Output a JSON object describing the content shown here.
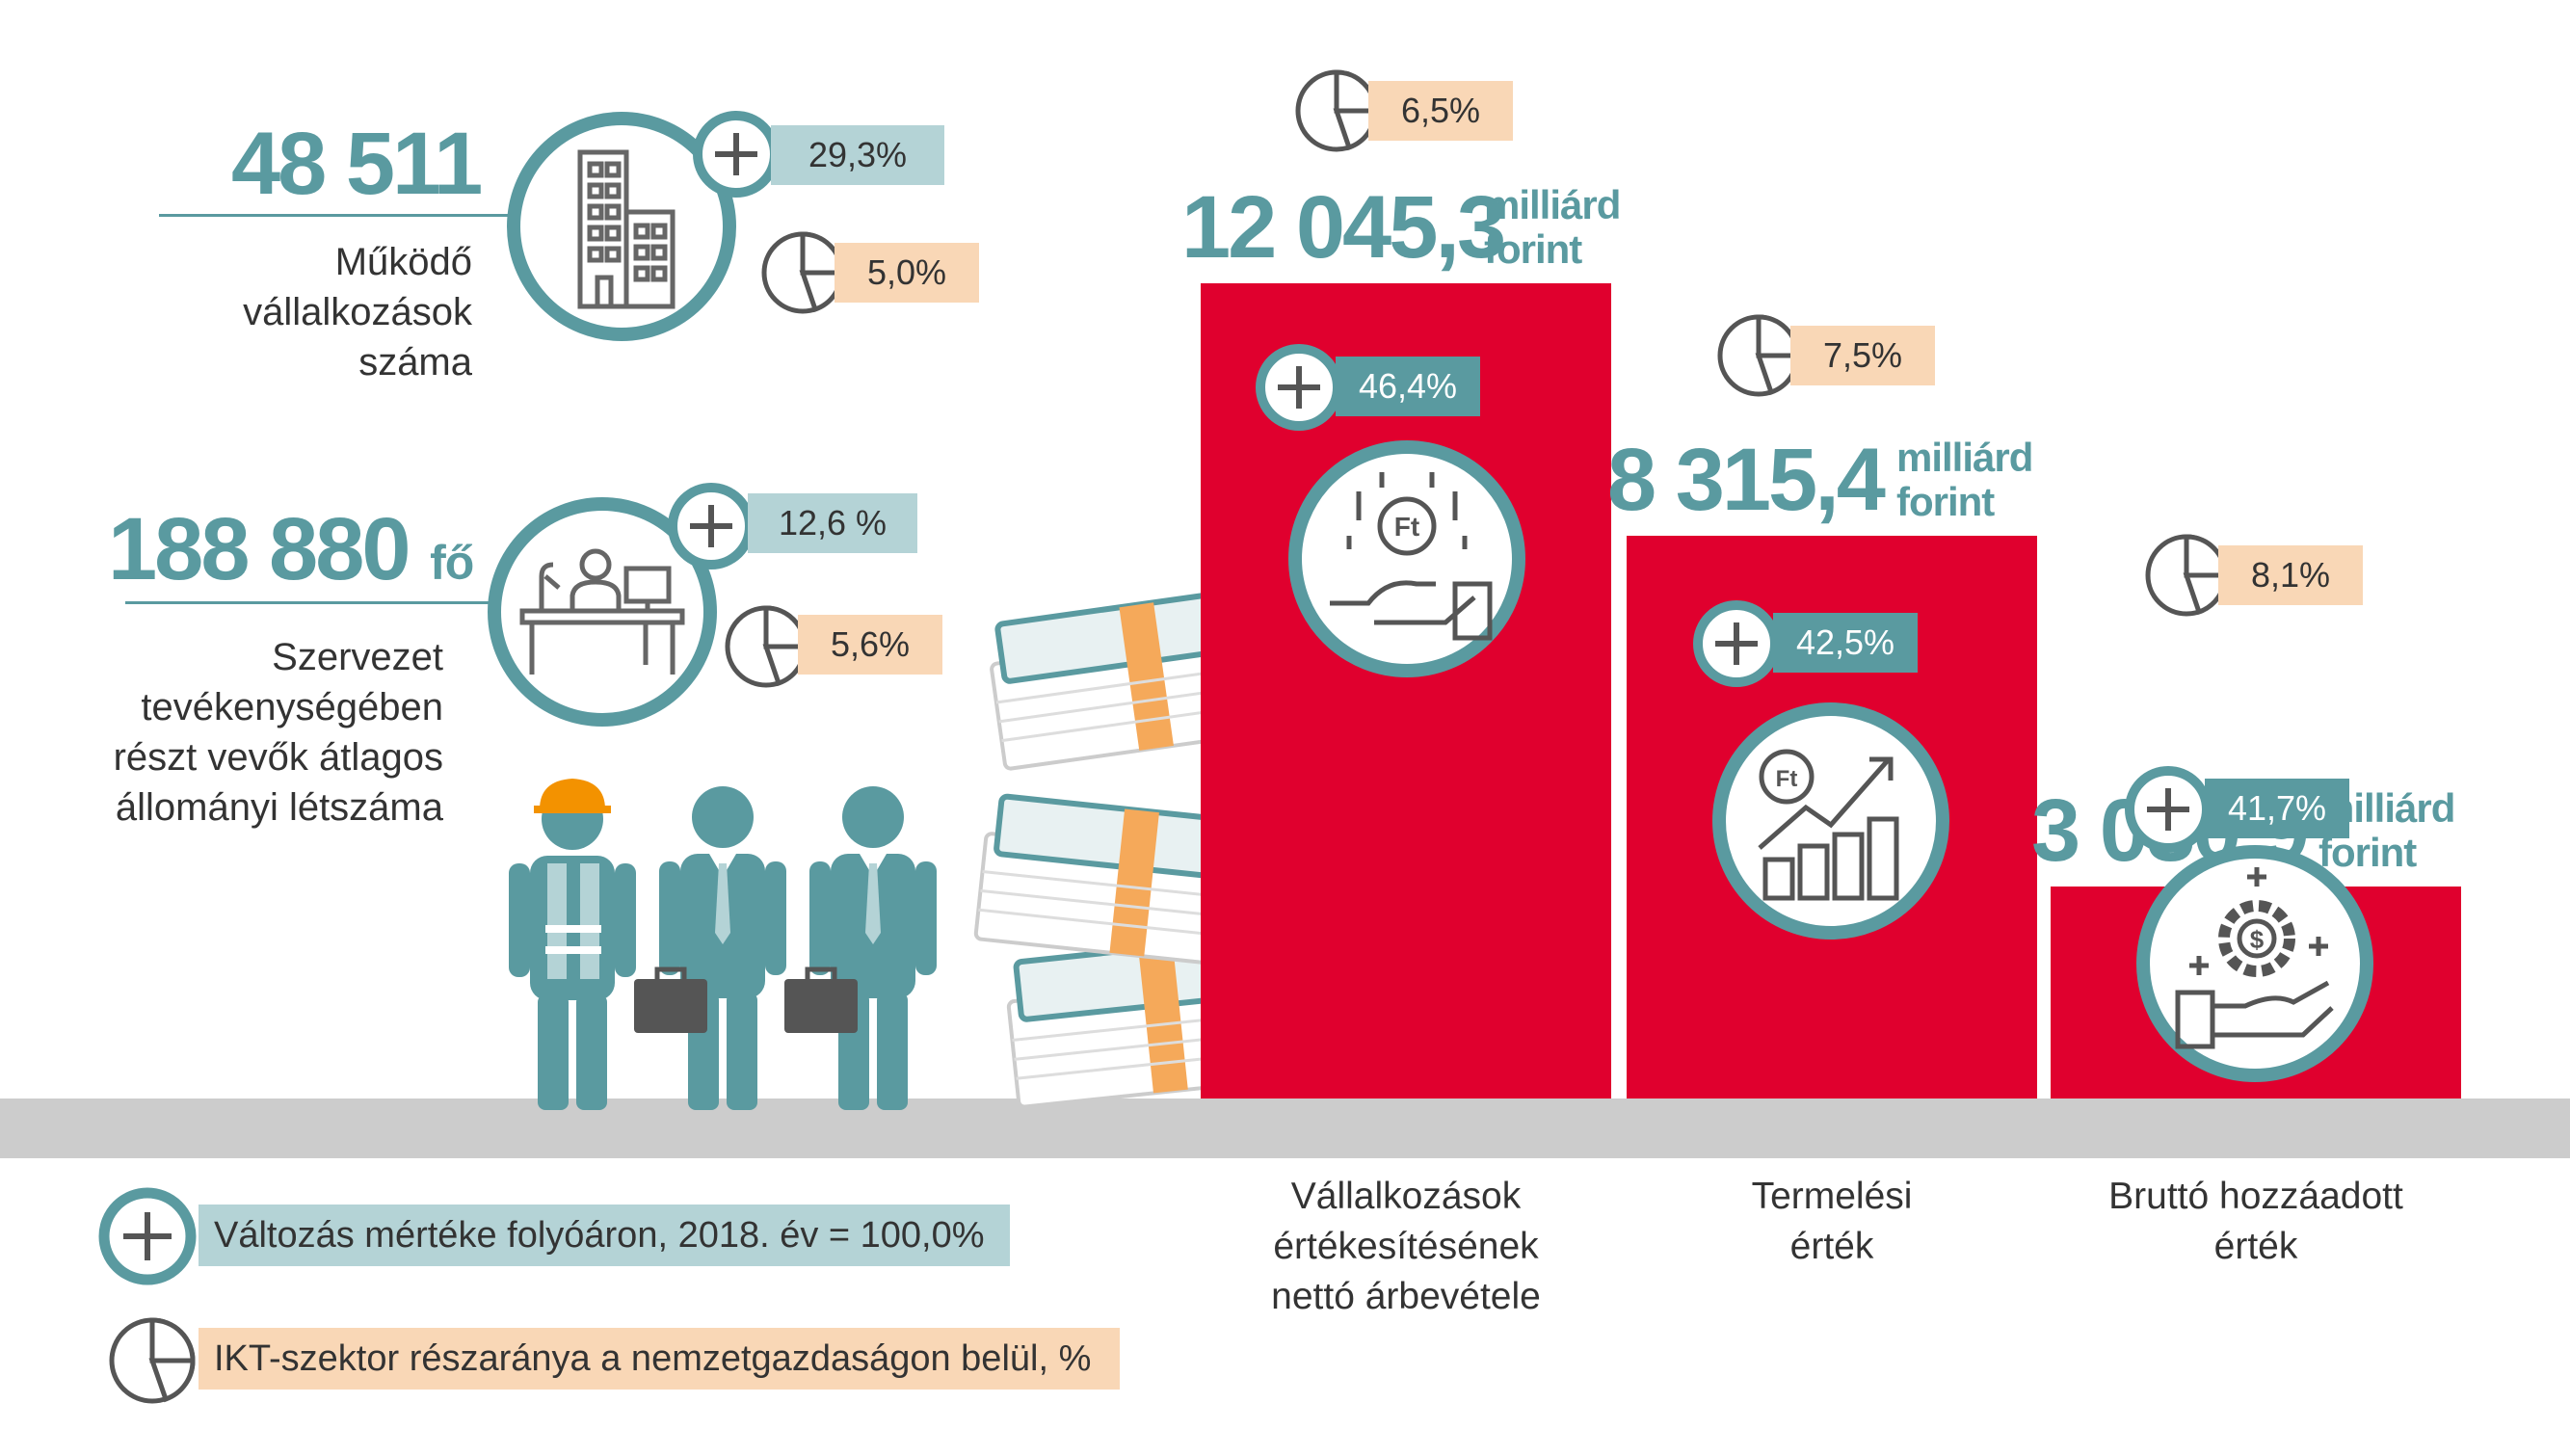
{
  "stats": {
    "enterprises": {
      "value": "48 511",
      "label_lines": [
        "Működő",
        "vállalkozások",
        "száma"
      ],
      "change": "29,3%",
      "share": "5,0%"
    },
    "employees": {
      "value": "188 880",
      "unit": "fő",
      "label_lines": [
        "Szervezet",
        "tevékenységében",
        "részt vevők átlagos",
        "állományi létszáma"
      ],
      "change": "12,6 %",
      "share": "5,6%"
    }
  },
  "bars": [
    {
      "value": "12 045,3",
      "unit_line1": "milliárd",
      "unit_line2": "forint",
      "change": "46,4%",
      "share": "6,5%",
      "caption_lines": [
        "Vállalkozások",
        "értékesítésének",
        "nettó árbevétele"
      ],
      "height_ratio": 1.0
    },
    {
      "value": "8 315,4",
      "unit_line1": "milliárd",
      "unit_line2": "forint",
      "change": "42,5%",
      "share": "7,5%",
      "caption_lines": [
        "Termelési",
        "érték"
      ],
      "height_ratio": 0.69
    },
    {
      "value": "3 080,9",
      "unit_line1": "milliárd",
      "unit_line2": "forint",
      "change": "41,7%",
      "share": "8,1%",
      "caption_lines": [
        "Bruttó hozzáadott",
        "érték"
      ],
      "height_ratio": 0.26
    }
  ],
  "legend": {
    "change": "Változás mértéke folyóáron, 2018. év = 100,0%",
    "share": "IKT-szektor részaránya a nemzetgazdaságon belül, %"
  },
  "colors": {
    "teal": "#5a9aa0",
    "light_teal": "#b4d3d6",
    "peach": "#f9d7b6",
    "red": "#e0002e",
    "ground": "#cccccc"
  },
  "icons": [
    "plus-icon",
    "pie-chart-icon",
    "building-icon",
    "office-desk-icon",
    "workers-icon",
    "money-stack-icon",
    "hand-coin-icon",
    "growth-chart-icon",
    "gear-dollar-icon"
  ]
}
